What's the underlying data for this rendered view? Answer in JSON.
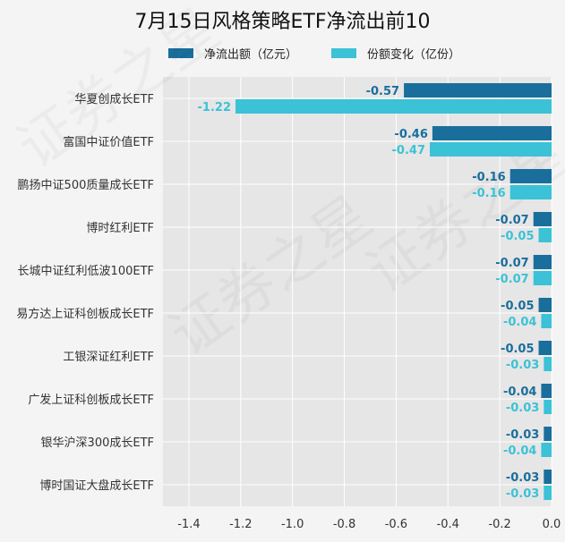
{
  "title": "7月15日风格策略ETF净流出前10",
  "colors": {
    "net_outflow": "#1a6e9c",
    "share_change": "#3bc2d6",
    "plot_bg": "#e6e6e6",
    "grid": "#ffffff"
  },
  "chart_data": {
    "type": "bar",
    "orientation": "horizontal",
    "title": "7月15日风格策略ETF净流出前10",
    "categories": [
      "华夏创成长ETF",
      "富国中证价值ETF",
      "鹏扬中证500质量成长ETF",
      "博时红利ETF",
      "长城中证红利低波100ETF",
      "易方达上证科创板成长ETF",
      "工银深证红利ETF",
      "广发上证科创板成长ETF",
      "银华沪深300成长ETF",
      "博时国证大盘成长ETF"
    ],
    "series": [
      {
        "name": "净流出额（亿元）",
        "values": [
          -0.57,
          -0.46,
          -0.16,
          -0.07,
          -0.07,
          -0.05,
          -0.05,
          -0.04,
          -0.03,
          -0.03
        ],
        "labels": [
          "-0.57",
          "-0.46",
          "-0.16",
          "-0.07",
          "-0.07",
          "-0.05",
          "-0.05",
          "-0.04",
          "-0.03",
          "-0.03"
        ]
      },
      {
        "name": "份额变化（亿份）",
        "values": [
          -1.22,
          -0.47,
          -0.16,
          -0.05,
          -0.07,
          -0.04,
          -0.03,
          -0.03,
          -0.04,
          -0.03
        ],
        "labels": [
          "-1.22",
          "-0.47",
          "-0.16",
          "-0.05",
          "-0.07",
          "-0.04",
          "-0.03",
          "-0.03",
          "-0.04",
          "-0.03"
        ]
      }
    ],
    "xlim": [
      -1.5,
      0
    ],
    "x_ticks": [
      "-1.4",
      "-1.2",
      "-1.0",
      "-0.8",
      "-0.6",
      "-0.4",
      "-0.2",
      "0.0"
    ],
    "x_tick_values": [
      -1.4,
      -1.2,
      -1.0,
      -0.8,
      -0.6,
      -0.4,
      -0.2,
      0.0
    ],
    "grid": true,
    "legend_position": "top-left"
  },
  "watermark": "证券之星"
}
